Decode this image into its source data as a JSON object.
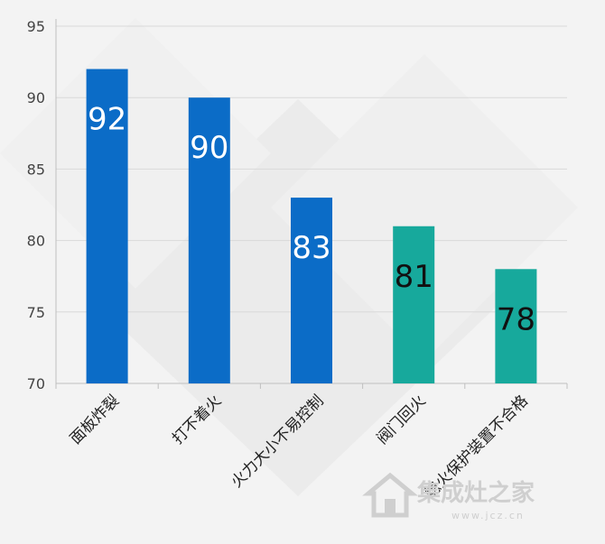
{
  "chart_data": {
    "type": "bar",
    "title": "",
    "xlabel": "",
    "ylabel": "",
    "categories": [
      "面板炸裂",
      "打不着火",
      "火力大小不易控制",
      "阀门回火",
      "熄火保护装置不合格"
    ],
    "values": [
      92,
      90,
      83,
      81,
      78
    ],
    "ylim": [
      70,
      95
    ],
    "yticks": [
      70,
      75,
      80,
      85,
      90,
      95
    ],
    "grid": true,
    "legend": "none",
    "colors": [
      "#0b6cc7",
      "#0b6cc7",
      "#0b6cc7",
      "#17a99c",
      "#17a99c"
    ],
    "label_colors": [
      "#ffffff",
      "#ffffff",
      "#ffffff",
      "#111111",
      "#111111"
    ]
  },
  "watermark": {
    "text": "集成灶之家",
    "url": "www.jcz.cn"
  },
  "icons": {
    "watermark_logo": "house-icon"
  }
}
